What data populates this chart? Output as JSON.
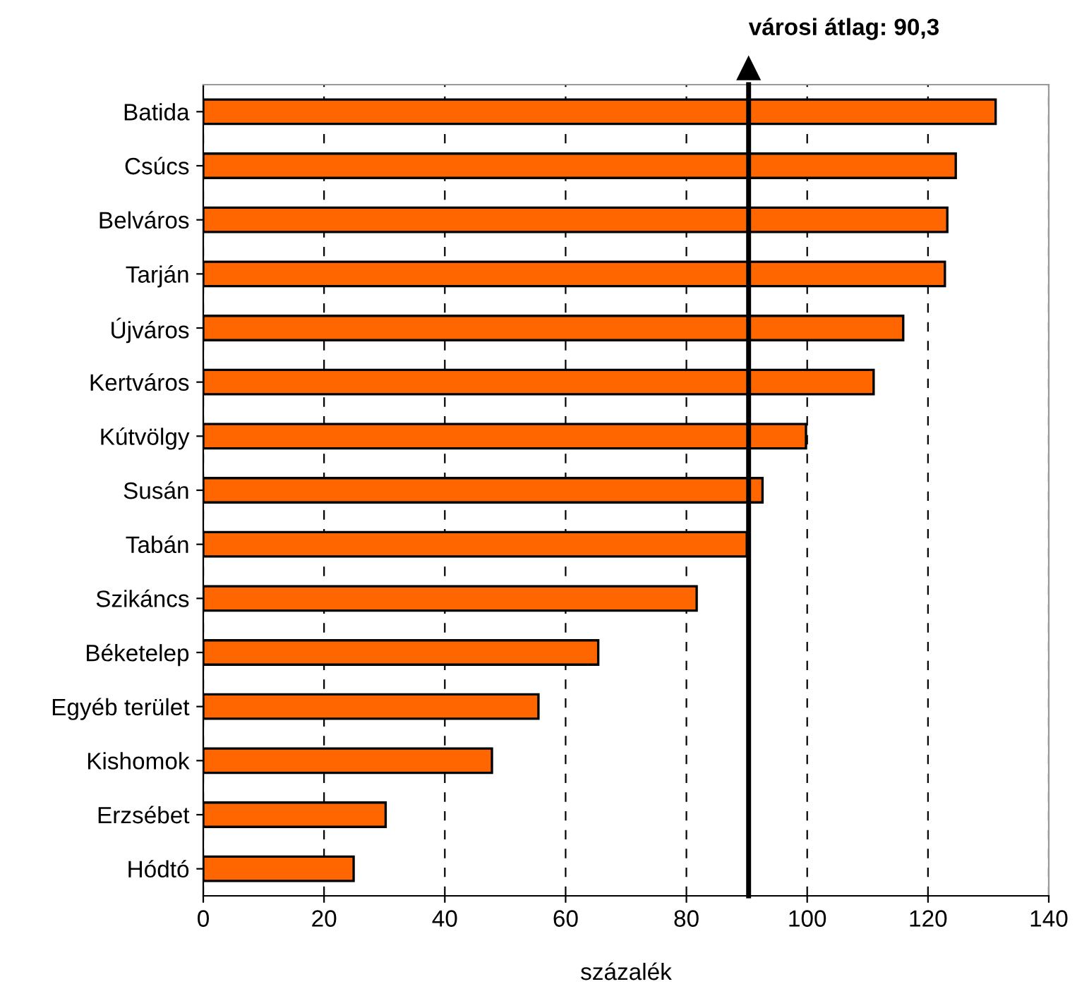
{
  "chart_data": {
    "type": "bar",
    "orientation": "horizontal",
    "xlabel": "százalék",
    "categories": [
      "Batida",
      "Csúcs",
      "Belváros",
      "Tarján",
      "Újváros",
      "Kertváros",
      "Kútvölgy",
      "Susán",
      "Tabán",
      "Szikáncs",
      "Béketelep",
      "Egyéb terület",
      "Kishomok",
      "Erzsébet",
      "Hódtó"
    ],
    "values": [
      131.2,
      124.6,
      123.2,
      122.8,
      115.9,
      111.0,
      99.8,
      92.6,
      90.0,
      81.7,
      65.4,
      55.5,
      47.8,
      30.2,
      24.9
    ],
    "color": "#ff6600",
    "xlim": [
      0,
      140
    ],
    "xticks": [
      0,
      20,
      40,
      60,
      80,
      100,
      120,
      140
    ],
    "grid": "x",
    "ref_lines": [
      {
        "axis": "x",
        "value": 90.3,
        "label": "városi átlag: 90,3",
        "color": "#000000"
      }
    ]
  }
}
